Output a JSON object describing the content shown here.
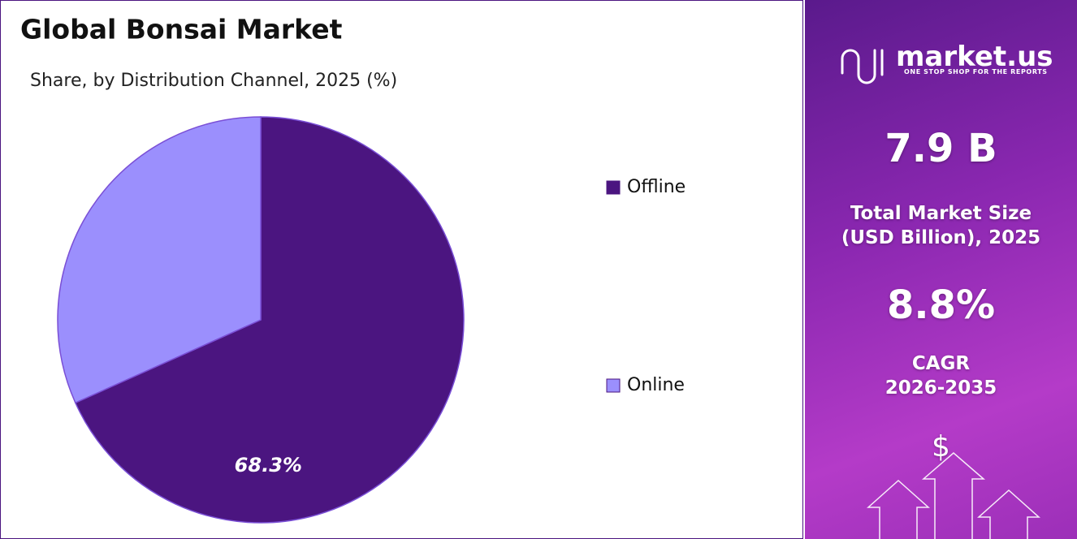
{
  "chart_data": {
    "type": "pie",
    "title": "Global Bonsai Market",
    "subtitle": "Share, by Distribution Channel, 2025 (%)",
    "categories": [
      "Offline",
      "Online"
    ],
    "values": [
      68.3,
      31.7
    ],
    "value_labels": [
      "68.3%",
      null
    ],
    "colors": [
      "#4b1580",
      "#9b8ffd"
    ],
    "legend": "right"
  },
  "side_panel": {
    "brand": "market.us",
    "tagline": "ONE STOP SHOP FOR THE REPORTS",
    "market_size": "7.9 B",
    "market_size_label_1": "Total Market Size",
    "market_size_label_2": "(USD Billion), 2025",
    "cagr": "8.8%",
    "cagr_label_1": "CAGR",
    "cagr_label_2": "2026-2035",
    "icon": "$"
  }
}
